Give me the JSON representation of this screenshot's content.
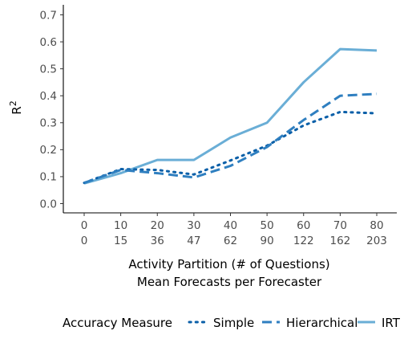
{
  "chart_data": {
    "type": "line",
    "ylabel": "R",
    "ylabel_superscript": "2",
    "xlabel_line1": "Activity Partition (# of Questions)",
    "xlabel_line2": "Mean Forecasts per Forecaster",
    "ylim": [
      -0.03,
      0.74
    ],
    "yticks": [
      0.0,
      0.1,
      0.2,
      0.3,
      0.4,
      0.5,
      0.6,
      0.7
    ],
    "ytick_labels": [
      "0.0",
      "0.1",
      "0.2",
      "0.3",
      "0.4",
      "0.5",
      "0.6",
      "0.7"
    ],
    "categories": [
      "0",
      "10",
      "20",
      "30",
      "40",
      "50",
      "60",
      "70",
      "80"
    ],
    "categories_second_line": [
      "0",
      "15",
      "36",
      "47",
      "62",
      "90",
      "122",
      "162",
      "203"
    ],
    "grid": false,
    "legend": {
      "title": "Accuracy Measure",
      "placement": "bottom"
    },
    "series": [
      {
        "name": "Simple",
        "style": "dotted",
        "color": "#0a5fa8",
        "values": [
          0.077,
          0.128,
          0.125,
          0.108,
          0.16,
          0.215,
          0.29,
          0.34,
          0.335
        ]
      },
      {
        "name": "Hierarchical",
        "style": "dashed",
        "color": "#2f7fc0",
        "values": [
          0.077,
          0.125,
          0.113,
          0.097,
          0.14,
          0.21,
          0.31,
          0.4,
          0.407
        ]
      },
      {
        "name": "IRT",
        "style": "solid",
        "color": "#6aaed6",
        "values": [
          0.075,
          0.113,
          0.162,
          0.162,
          0.245,
          0.3,
          0.45,
          0.573,
          0.568
        ]
      }
    ]
  }
}
